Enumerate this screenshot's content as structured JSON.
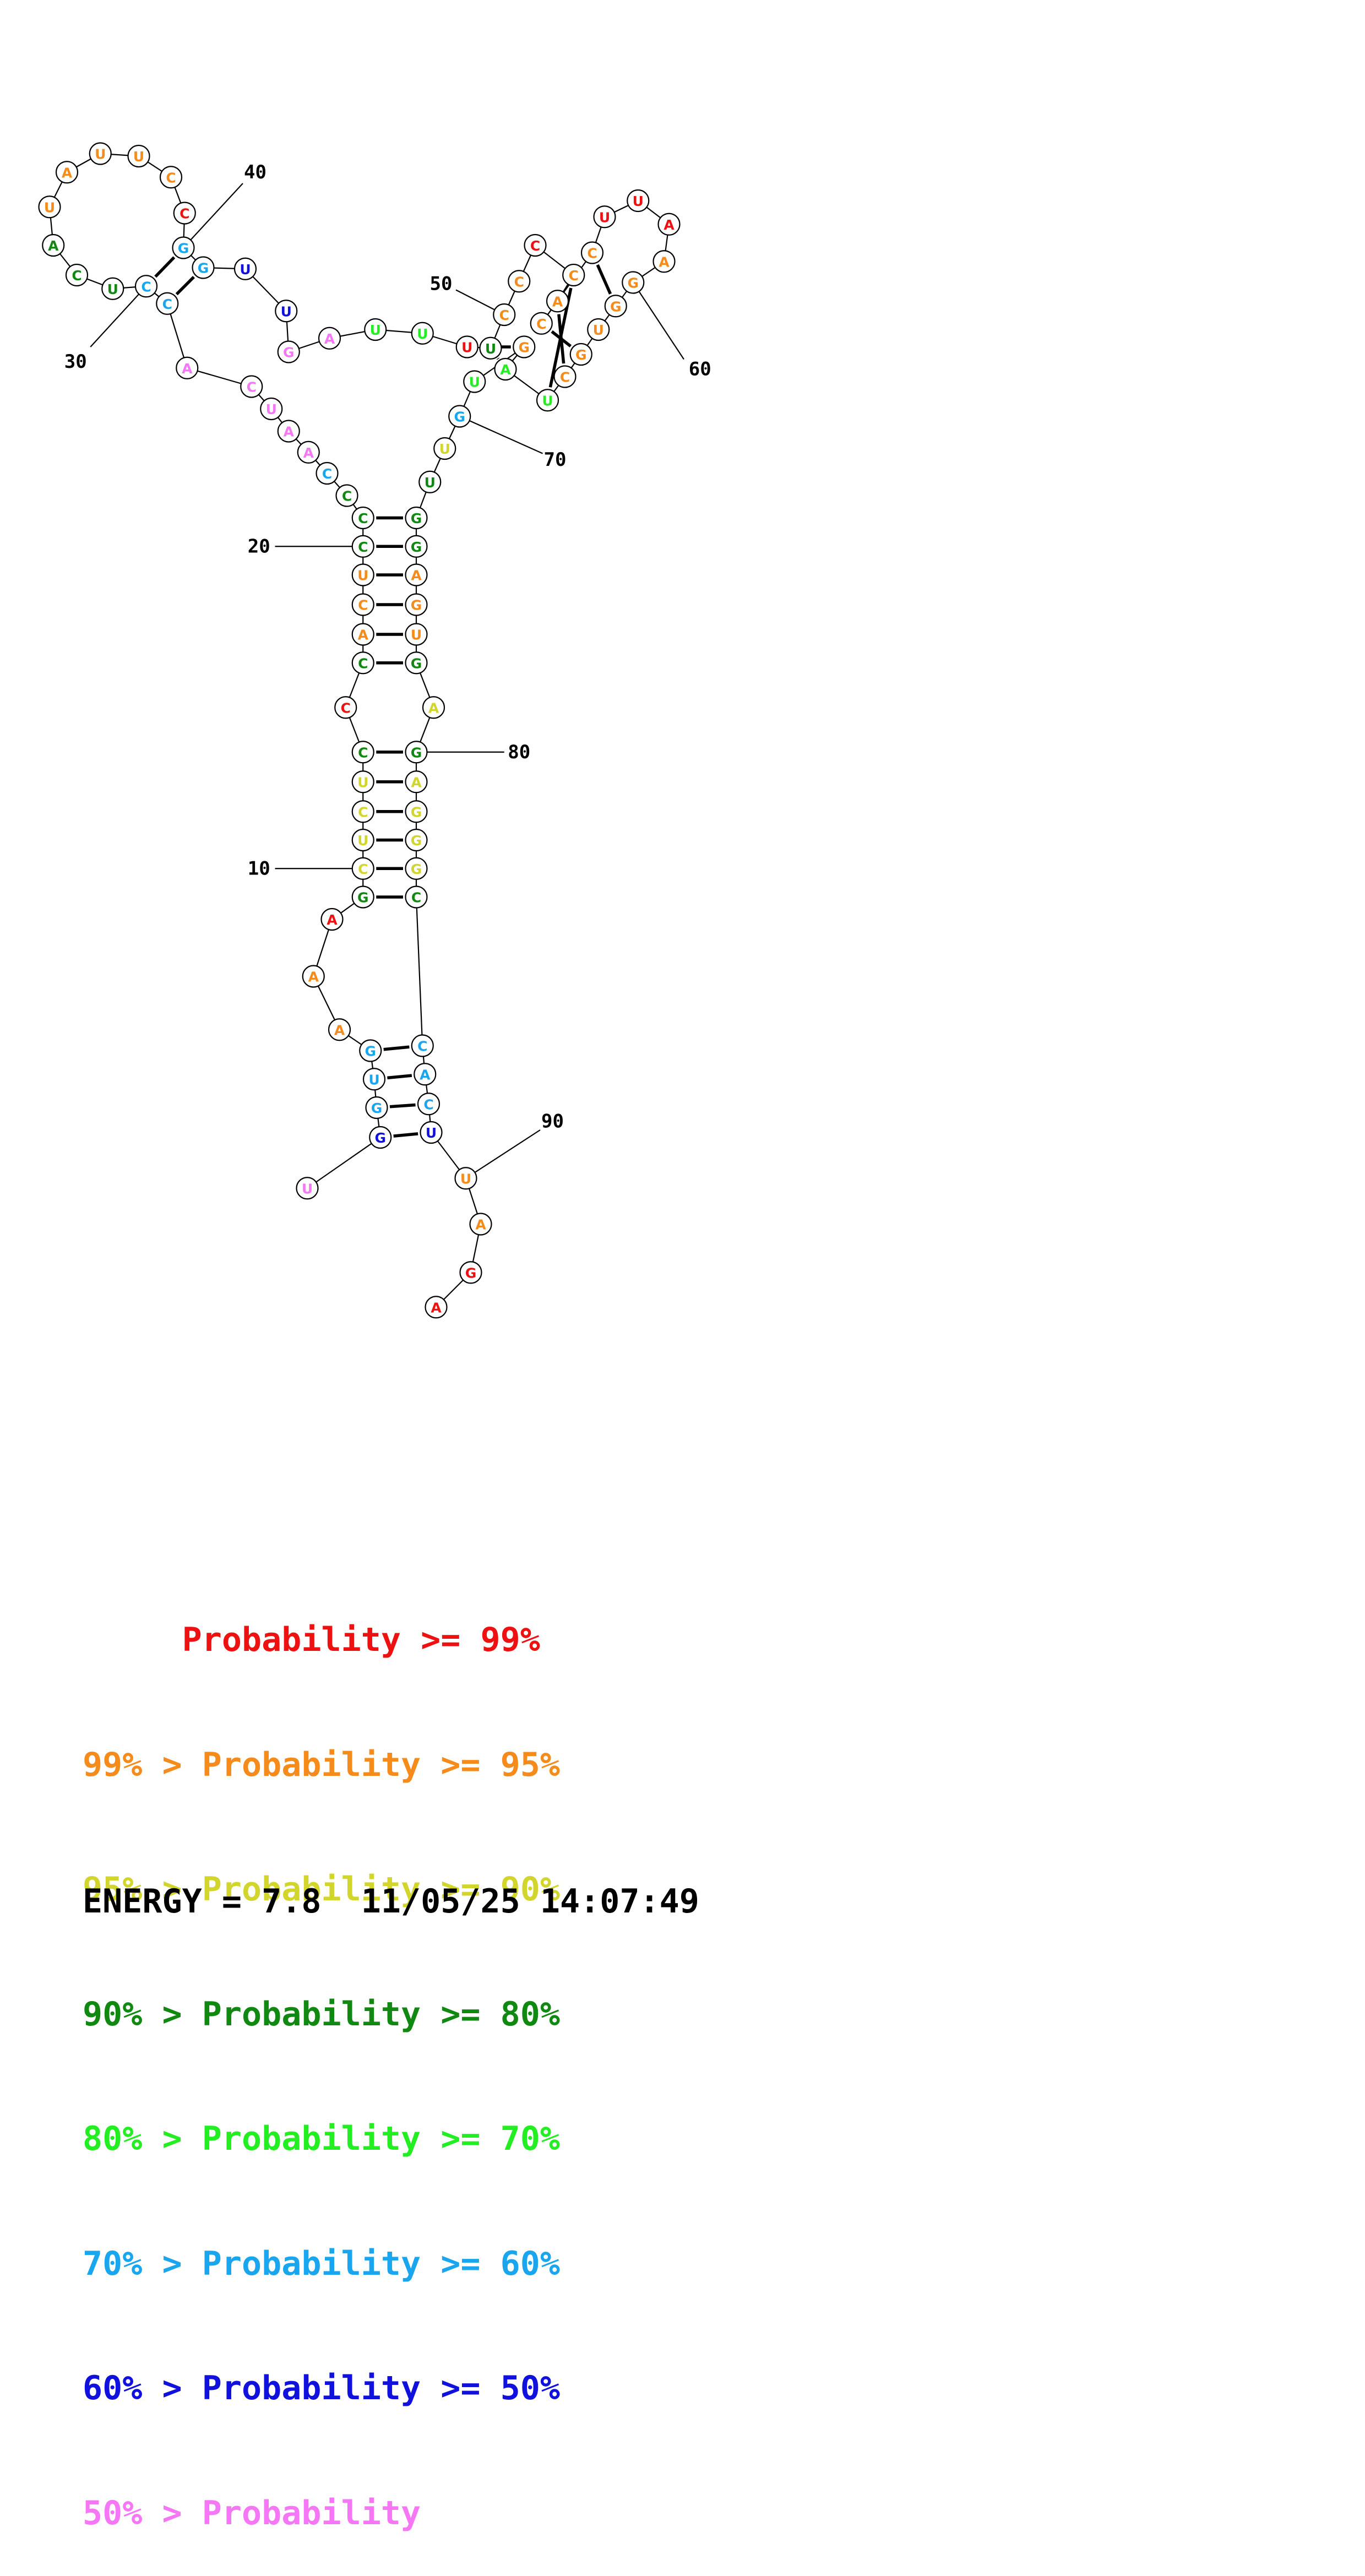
{
  "colors": {
    "p99": "#ee1111",
    "p95": "#f58b1b",
    "p90": "#d2d52c",
    "p80": "#118811",
    "p70": "#22ee22",
    "p60": "#1aa6ee",
    "p50": "#1111dd",
    "plow": "#f577f5"
  },
  "nucleotides": [
    {
      "n": 1,
      "b": "U",
      "c": "plow"
    },
    {
      "n": 2,
      "b": "G",
      "c": "p50"
    },
    {
      "n": 3,
      "b": "G",
      "c": "p60"
    },
    {
      "n": 4,
      "b": "U",
      "c": "p60"
    },
    {
      "n": 5,
      "b": "G",
      "c": "p60"
    },
    {
      "n": 6,
      "b": "A",
      "c": "p95"
    },
    {
      "n": 7,
      "b": "A",
      "c": "p95"
    },
    {
      "n": 8,
      "b": "A",
      "c": "p99"
    },
    {
      "n": 9,
      "b": "G",
      "c": "p80"
    },
    {
      "n": 10,
      "b": "C",
      "c": "p90"
    },
    {
      "n": 11,
      "b": "U",
      "c": "p90"
    },
    {
      "n": 12,
      "b": "C",
      "c": "p90"
    },
    {
      "n": 13,
      "b": "U",
      "c": "p90"
    },
    {
      "n": 14,
      "b": "C",
      "c": "p80"
    },
    {
      "n": 15,
      "b": "C",
      "c": "p99"
    },
    {
      "n": 16,
      "b": "C",
      "c": "p80"
    },
    {
      "n": 17,
      "b": "A",
      "c": "p95"
    },
    {
      "n": 18,
      "b": "C",
      "c": "p95"
    },
    {
      "n": 19,
      "b": "U",
      "c": "p95"
    },
    {
      "n": 20,
      "b": "C",
      "c": "p80"
    },
    {
      "n": 21,
      "b": "C",
      "c": "p80"
    },
    {
      "n": 22,
      "b": "C",
      "c": "p80"
    },
    {
      "n": 23,
      "b": "C",
      "c": "p60"
    },
    {
      "n": 24,
      "b": "A",
      "c": "plow"
    },
    {
      "n": 25,
      "b": "A",
      "c": "plow"
    },
    {
      "n": 26,
      "b": "U",
      "c": "plow"
    },
    {
      "n": 27,
      "b": "C",
      "c": "plow"
    },
    {
      "n": 28,
      "b": "A",
      "c": "plow"
    },
    {
      "n": 29,
      "b": "C",
      "c": "p60"
    },
    {
      "n": 30,
      "b": "C",
      "c": "p60"
    },
    {
      "n": 31,
      "b": "U",
      "c": "p80"
    },
    {
      "n": 32,
      "b": "C",
      "c": "p80"
    },
    {
      "n": 33,
      "b": "A",
      "c": "p80"
    },
    {
      "n": 34,
      "b": "U",
      "c": "p95"
    },
    {
      "n": 35,
      "b": "A",
      "c": "p95"
    },
    {
      "n": 36,
      "b": "U",
      "c": "p95"
    },
    {
      "n": 37,
      "b": "U",
      "c": "p95"
    },
    {
      "n": 38,
      "b": "C",
      "c": "p95"
    },
    {
      "n": 39,
      "b": "C",
      "c": "p99"
    },
    {
      "n": 40,
      "b": "G",
      "c": "p60"
    },
    {
      "n": 41,
      "b": "G",
      "c": "p60"
    },
    {
      "n": 42,
      "b": "U",
      "c": "p50"
    },
    {
      "n": 43,
      "b": "U",
      "c": "p50"
    },
    {
      "n": 44,
      "b": "G",
      "c": "plow"
    },
    {
      "n": 45,
      "b": "A",
      "c": "plow"
    },
    {
      "n": 46,
      "b": "U",
      "c": "p70"
    },
    {
      "n": 47,
      "b": "U",
      "c": "p70"
    },
    {
      "n": 48,
      "b": "U",
      "c": "p99"
    },
    {
      "n": 49,
      "b": "U",
      "c": "p80"
    },
    {
      "n": 50,
      "b": "C",
      "c": "p95"
    },
    {
      "n": 51,
      "b": "C",
      "c": "p95"
    },
    {
      "n": 52,
      "b": "C",
      "c": "p99"
    },
    {
      "n": 53,
      "b": "C",
      "c": "p95"
    },
    {
      "n": 54,
      "b": "A",
      "c": "p95"
    },
    {
      "n": 55,
      "b": "C",
      "c": "p95"
    },
    {
      "n": 56,
      "b": "C",
      "c": "p95"
    },
    {
      "n": 57,
      "b": "U",
      "c": "p99"
    },
    {
      "n": 58,
      "b": "U",
      "c": "p99"
    },
    {
      "n": 59,
      "b": "A",
      "c": "p99"
    },
    {
      "n": 60,
      "b": "A",
      "c": "p95"
    },
    {
      "n": 61,
      "b": "G",
      "c": "p95"
    },
    {
      "n": 62,
      "b": "G",
      "c": "p95"
    },
    {
      "n": 63,
      "b": "U",
      "c": "p95"
    },
    {
      "n": 64,
      "b": "G",
      "c": "p95"
    },
    {
      "n": 65,
      "b": "C",
      "c": "p95"
    },
    {
      "n": 66,
      "b": "U",
      "c": "p70"
    },
    {
      "n": 67,
      "b": "A",
      "c": "p70"
    },
    {
      "n": 68,
      "b": "G",
      "c": "p95"
    },
    {
      "n": 69,
      "b": "U",
      "c": "p70"
    },
    {
      "n": 70,
      "b": "G",
      "c": "p60"
    },
    {
      "n": 71,
      "b": "U",
      "c": "p90"
    },
    {
      "n": 72,
      "b": "U",
      "c": "p80"
    },
    {
      "n": 73,
      "b": "G",
      "c": "p80"
    },
    {
      "n": 74,
      "b": "G",
      "c": "p80"
    },
    {
      "n": 75,
      "b": "A",
      "c": "p95"
    },
    {
      "n": 76,
      "b": "G",
      "c": "p95"
    },
    {
      "n": 77,
      "b": "U",
      "c": "p95"
    },
    {
      "n": 78,
      "b": "G",
      "c": "p80"
    },
    {
      "n": 79,
      "b": "A",
      "c": "p90"
    },
    {
      "n": 80,
      "b": "G",
      "c": "p80"
    },
    {
      "n": 81,
      "b": "A",
      "c": "p90"
    },
    {
      "n": 82,
      "b": "G",
      "c": "p90"
    },
    {
      "n": 83,
      "b": "G",
      "c": "p90"
    },
    {
      "n": 84,
      "b": "G",
      "c": "p90"
    },
    {
      "n": 85,
      "b": "C",
      "c": "p80"
    },
    {
      "n": 86,
      "b": "C",
      "c": "p60"
    },
    {
      "n": 87,
      "b": "A",
      "c": "p60"
    },
    {
      "n": 88,
      "b": "C",
      "c": "p60"
    },
    {
      "n": 89,
      "b": "U",
      "c": "p50"
    },
    {
      "n": 90,
      "b": "U",
      "c": "p95"
    },
    {
      "n": 91,
      "b": "A",
      "c": "p95"
    },
    {
      "n": 92,
      "b": "G",
      "c": "p99"
    },
    {
      "n": 93,
      "b": "A",
      "c": "p99"
    }
  ],
  "pairs": [
    [
      2,
      89
    ],
    [
      3,
      88
    ],
    [
      4,
      87
    ],
    [
      5,
      86
    ],
    [
      9,
      85
    ],
    [
      10,
      84
    ],
    [
      11,
      83
    ],
    [
      12,
      82
    ],
    [
      13,
      81
    ],
    [
      14,
      80
    ],
    [
      16,
      78
    ],
    [
      17,
      77
    ],
    [
      18,
      76
    ],
    [
      19,
      75
    ],
    [
      20,
      74
    ],
    [
      21,
      73
    ],
    [
      29,
      41
    ],
    [
      30,
      40
    ],
    [
      48,
      68
    ],
    [
      49,
      67
    ],
    [
      53,
      66
    ],
    [
      54,
      65
    ],
    [
      55,
      64
    ],
    [
      56,
      62
    ]
  ],
  "index_labels": [
    {
      "text": "10",
      "target": 10
    },
    {
      "text": "20",
      "target": 20
    },
    {
      "text": "30",
      "target": 30
    },
    {
      "text": "40",
      "target": 40
    },
    {
      "text": "50",
      "target": 50
    },
    {
      "text": "60",
      "target": 60
    },
    {
      "text": "70",
      "target": 70
    },
    {
      "text": "80",
      "target": 80
    },
    {
      "text": "90",
      "target": 90
    }
  ],
  "legend": [
    {
      "text": "     Probability >= 99%",
      "color": "p99"
    },
    {
      "text": "99% > Probability >= 95%",
      "color": "p95"
    },
    {
      "text": "95% > Probability >= 90%",
      "color": "p90"
    },
    {
      "text": "90% > Probability >= 80%",
      "color": "p80"
    },
    {
      "text": "80% > Probability >= 70%",
      "color": "p70"
    },
    {
      "text": "70% > Probability >= 60%",
      "color": "p60"
    },
    {
      "text": "60% > Probability >= 50%",
      "color": "p50"
    },
    {
      "text": "50% > Probability",
      "color": "plow"
    }
  ],
  "energy_line": "ENERGY = 7.8  11/05/25 14:07:49"
}
